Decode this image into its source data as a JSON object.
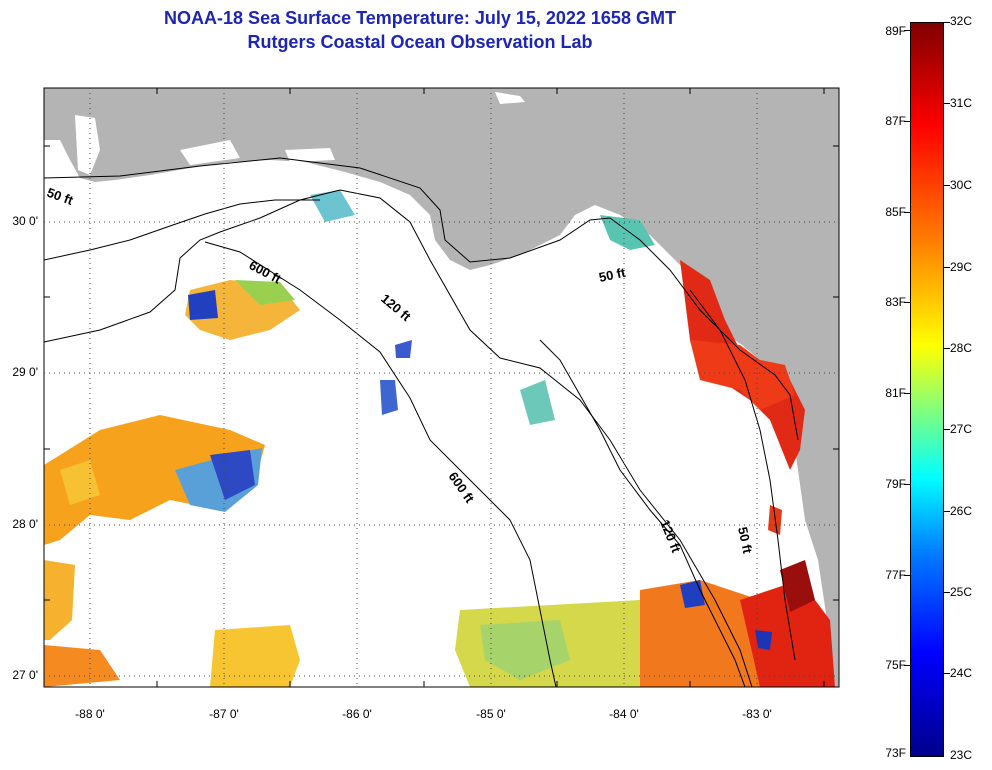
{
  "title": "NOAA-18 Sea Surface Temperature:  July 15, 2022 1658 GMT",
  "subtitle": "Rutgers Coastal Ocean Observation Lab",
  "axes": {
    "lat_labels": [
      "30 0'",
      "29 0'",
      "28 0'",
      "27 0'"
    ],
    "lon_labels": [
      "-88 0'",
      "-87 0'",
      "-86 0'",
      "-85 0'",
      "-84 0'",
      "-83 0'"
    ]
  },
  "contours": [
    {
      "label": "50 ft"
    },
    {
      "label": "600 ft"
    },
    {
      "label": "120 ft"
    },
    {
      "label": "50 ft"
    },
    {
      "label": "600 ft"
    },
    {
      "label": "120 ft"
    },
    {
      "label": "50 ft"
    }
  ],
  "colorbar": {
    "fahrenheit": [
      "89F",
      "87F",
      "85F",
      "83F",
      "81F",
      "79F",
      "77F",
      "75F",
      "73F"
    ],
    "celsius": [
      "32C",
      "31C",
      "30C",
      "29C",
      "28C",
      "27C",
      "26C",
      "25C",
      "24C",
      "23C"
    ]
  },
  "colors": {
    "land": "#b4b4b4",
    "title": "#1c25b4",
    "grid": "#000000"
  }
}
